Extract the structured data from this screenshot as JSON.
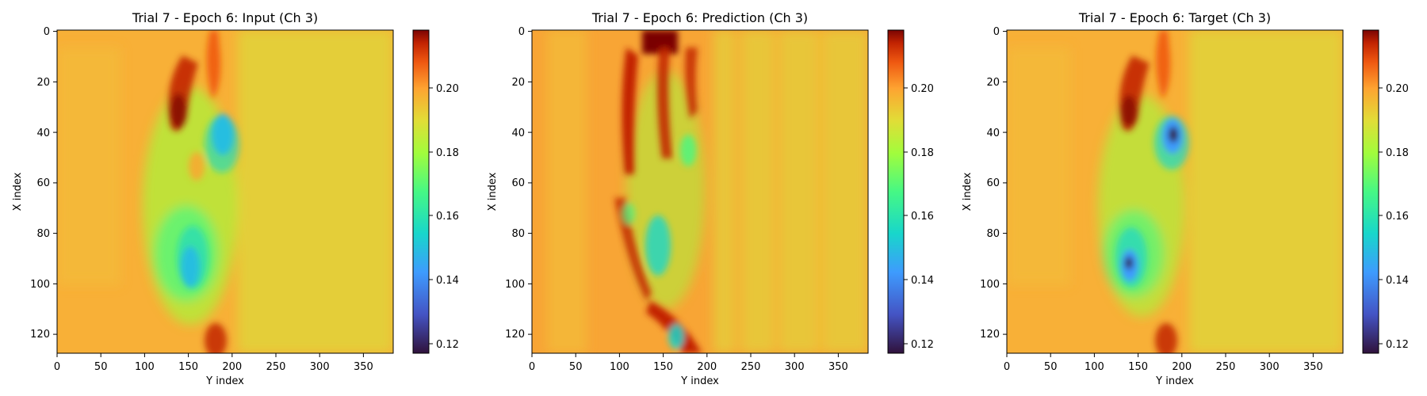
{
  "colormap": "turbo",
  "panels": [
    {
      "title": "Trial 7 - Epoch 6: Input (Ch 3)",
      "xlabel": "Y index",
      "ylabel": "X index",
      "xticks": [
        "0",
        "50",
        "100",
        "150",
        "200",
        "250",
        "300",
        "350"
      ],
      "yticks": [
        "0",
        "20",
        "40",
        "60",
        "80",
        "100",
        "120"
      ],
      "cbar_ticks": [
        "0.12",
        "0.14",
        "0.16",
        "0.18",
        "0.20"
      ]
    },
    {
      "title": "Trial 7 - Epoch 6: Prediction (Ch 3)",
      "xlabel": "Y index",
      "ylabel": "X index",
      "xticks": [
        "0",
        "50",
        "100",
        "150",
        "200",
        "250",
        "300",
        "350"
      ],
      "yticks": [
        "0",
        "20",
        "40",
        "60",
        "80",
        "100",
        "120"
      ],
      "cbar_ticks": [
        "0.12",
        "0.14",
        "0.16",
        "0.18",
        "0.20"
      ]
    },
    {
      "title": "Trial 7 - Epoch 6: Target (Ch 3)",
      "xlabel": "Y index",
      "ylabel": "X index",
      "xticks": [
        "0",
        "50",
        "100",
        "150",
        "200",
        "250",
        "300",
        "350"
      ],
      "yticks": [
        "0",
        "20",
        "40",
        "60",
        "80",
        "100",
        "120"
      ],
      "cbar_ticks": [
        "0.12",
        "0.14",
        "0.16",
        "0.18",
        "0.20"
      ]
    }
  ],
  "chart_data": [
    {
      "type": "heatmap",
      "title": "Trial 7 - Epoch 6: Input (Ch 3)",
      "xlabel": "Y index",
      "ylabel": "X index",
      "xlim": [
        0,
        384
      ],
      "ylim": [
        128,
        0
      ],
      "color_range": [
        0.117,
        0.218
      ],
      "colorbar_ticks": [
        0.12,
        0.14,
        0.16,
        0.18,
        0.2
      ],
      "background_value": 0.185,
      "features": [
        {
          "x": 150,
          "y": 30,
          "w": 30,
          "h": 30,
          "value": 0.215
        },
        {
          "x": 183,
          "y": 5,
          "w": 18,
          "h": 35,
          "value": 0.205
        },
        {
          "x": 185,
          "y": 40,
          "w": 18,
          "h": 22,
          "value": 0.135
        },
        {
          "x": 145,
          "y": 90,
          "w": 18,
          "h": 28,
          "value": 0.145
        },
        {
          "x": 150,
          "y": 70,
          "w": 60,
          "h": 75,
          "value": 0.165
        },
        {
          "x": 185,
          "y": 123,
          "w": 25,
          "h": 12,
          "value": 0.212
        },
        {
          "x": 200,
          "y": 65,
          "w": 30,
          "h": 60,
          "value": 0.175
        }
      ]
    },
    {
      "type": "heatmap",
      "title": "Trial 7 - Epoch 6: Prediction (Ch 3)",
      "xlabel": "Y index",
      "ylabel": "X index",
      "xlim": [
        0,
        384
      ],
      "ylim": [
        128,
        0
      ],
      "color_range": [
        0.117,
        0.218
      ],
      "colorbar_ticks": [
        0.12,
        0.14,
        0.16,
        0.18,
        0.2
      ],
      "background_value": 0.186,
      "features": [
        {
          "x": 165,
          "y": 5,
          "w": 35,
          "h": 12,
          "value": 0.218
        },
        {
          "x": 107,
          "y": 40,
          "w": 10,
          "h": 45,
          "value": 0.215
        },
        {
          "x": 140,
          "y": 30,
          "w": 14,
          "h": 40,
          "value": 0.21
        },
        {
          "x": 185,
          "y": 20,
          "w": 14,
          "h": 25,
          "value": 0.212
        },
        {
          "x": 150,
          "y": 110,
          "w": 30,
          "h": 25,
          "value": 0.212
        },
        {
          "x": 140,
          "y": 90,
          "w": 20,
          "h": 30,
          "value": 0.155
        },
        {
          "x": 150,
          "y": 122,
          "w": 12,
          "h": 12,
          "value": 0.155
        },
        {
          "x": 180,
          "y": 45,
          "w": 14,
          "h": 14,
          "value": 0.17
        }
      ]
    },
    {
      "type": "heatmap",
      "title": "Trial 7 - Epoch 6: Target (Ch 3)",
      "xlabel": "Y index",
      "ylabel": "X index",
      "xlim": [
        0,
        384
      ],
      "ylim": [
        128,
        0
      ],
      "color_range": [
        0.117,
        0.218
      ],
      "colorbar_ticks": [
        0.12,
        0.14,
        0.16,
        0.18,
        0.2
      ],
      "background_value": 0.185,
      "features": [
        {
          "x": 150,
          "y": 30,
          "w": 28,
          "h": 28,
          "value": 0.215
        },
        {
          "x": 183,
          "y": 5,
          "w": 18,
          "h": 35,
          "value": 0.205
        },
        {
          "x": 188,
          "y": 42,
          "w": 14,
          "h": 18,
          "value": 0.125
        },
        {
          "x": 140,
          "y": 90,
          "w": 12,
          "h": 14,
          "value": 0.125
        },
        {
          "x": 150,
          "y": 75,
          "w": 55,
          "h": 65,
          "value": 0.165
        },
        {
          "x": 185,
          "y": 123,
          "w": 25,
          "h": 12,
          "value": 0.21
        }
      ]
    }
  ]
}
